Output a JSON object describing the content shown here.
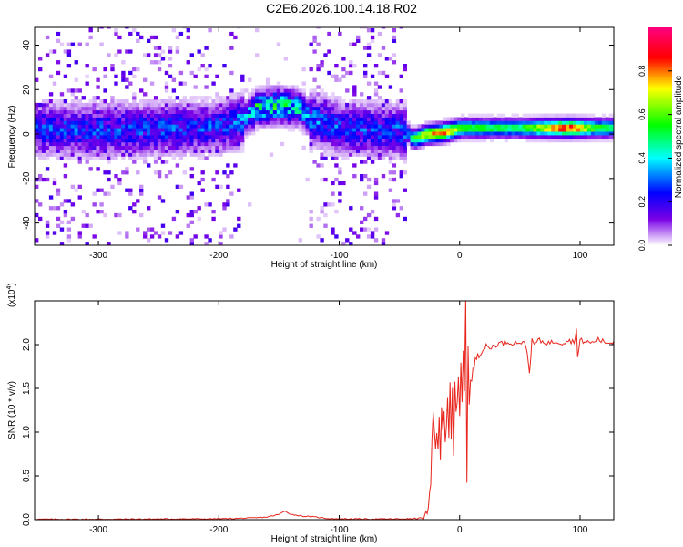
{
  "title": "C2E6.2026.100.14.18.R02",
  "chart_data": [
    {
      "type": "heatmap",
      "xlabel": "Height of straight line (km)",
      "ylabel": "Frequency (Hz)",
      "xlim": [
        -353,
        128
      ],
      "ylim": [
        -50,
        48
      ],
      "x_ticks": [
        -300,
        -200,
        -100,
        0,
        100
      ],
      "x_tick_labels": [
        "-300",
        "-200",
        "-100",
        "0",
        "100"
      ],
      "y_ticks": [
        -40,
        -20,
        0,
        20,
        40
      ],
      "y_tick_labels": [
        "-40",
        "-20",
        "0",
        "20",
        "40"
      ],
      "colorbar": {
        "label": "Normalized spectral amplitude",
        "range": [
          0.0,
          1.0
        ],
        "ticks": [
          0.0,
          0.2,
          0.4,
          0.6,
          0.8
        ],
        "tick_labels": [
          "0.0",
          "0.2",
          "0.4",
          "0.6",
          "0.8"
        ],
        "colormap": [
          "#ffffff",
          "#7a00e6",
          "#0000ff",
          "#00ffff",
          "#00ff00",
          "#ffff00",
          "#ff0000",
          "#ff0080"
        ]
      },
      "ridge": [
        {
          "x": -350,
          "f": 1.5,
          "amp": 0.25
        },
        {
          "x": -300,
          "f": 1.0,
          "amp": 0.25
        },
        {
          "x": -250,
          "f": 1.5,
          "amp": 0.25
        },
        {
          "x": -200,
          "f": 2.5,
          "amp": 0.25
        },
        {
          "x": -180,
          "f": 6.0,
          "amp": 0.3
        },
        {
          "x": -170,
          "f": 11.0,
          "amp": 0.45
        },
        {
          "x": -150,
          "f": 12.0,
          "amp": 0.5
        },
        {
          "x": -135,
          "f": 11.0,
          "amp": 0.4
        },
        {
          "x": -125,
          "f": 6.0,
          "amp": 0.3
        },
        {
          "x": -100,
          "f": 2.0,
          "amp": 0.25
        },
        {
          "x": -60,
          "f": 1.0,
          "amp": 0.25
        },
        {
          "x": -45,
          "f": 0.0,
          "amp": 0.3
        },
        {
          "x": -40,
          "f": -3.0,
          "amp": 0.55
        },
        {
          "x": -30,
          "f": -1.0,
          "amp": 0.75
        },
        {
          "x": -15,
          "f": 0.0,
          "amp": 0.85
        },
        {
          "x": 0,
          "f": 2.0,
          "amp": 0.6
        },
        {
          "x": 25,
          "f": 2.0,
          "amp": 0.55
        },
        {
          "x": 50,
          "f": 2.0,
          "amp": 0.55
        },
        {
          "x": 75,
          "f": 2.0,
          "amp": 0.8
        },
        {
          "x": 90,
          "f": 2.0,
          "amp": 0.95
        },
        {
          "x": 110,
          "f": 2.0,
          "amp": 0.6
        },
        {
          "x": 128,
          "f": 2.0,
          "amp": 0.55
        }
      ]
    },
    {
      "type": "line",
      "xlabel": "Height of straight line (km)",
      "ylabel": "SNR (10 * v/v)",
      "multiplier_label": "(x10",
      "multiplier_exp": "4",
      "multiplier_close": ")",
      "xlim": [
        -353,
        128
      ],
      "ylim": [
        0.0,
        2.5
      ],
      "x_ticks": [
        -300,
        -200,
        -100,
        0,
        100
      ],
      "x_tick_labels": [
        "-300",
        "-200",
        "-100",
        "0",
        "100"
      ],
      "y_ticks": [
        0.0,
        0.5,
        1.0,
        1.5,
        2.0
      ],
      "y_tick_labels": [
        "0.0",
        "0.5",
        "1.0",
        "1.5",
        "2.0"
      ],
      "color": "#e8261e",
      "series": [
        {
          "x": [
            -353,
            -300,
            -250,
            -200,
            -170,
            -160,
            -150,
            -145,
            -140,
            -130,
            -120,
            -110,
            -100,
            -80,
            -60,
            -40,
            -30,
            -28,
            -26,
            -24,
            -23,
            -22,
            -21,
            -20,
            -19,
            -18,
            -17,
            -16,
            -15,
            -14,
            -13,
            -12,
            -11,
            -10,
            -9,
            -8,
            -7,
            -6,
            -5,
            -4,
            -3,
            -2,
            -1,
            0,
            1,
            2,
            3,
            4,
            5,
            6,
            7,
            8,
            9,
            10,
            11,
            12,
            13,
            14,
            15,
            16,
            18,
            20,
            22,
            25,
            30,
            35,
            40,
            45,
            50,
            55,
            58,
            60,
            62,
            65,
            70,
            75,
            80,
            85,
            90,
            95,
            97,
            98,
            100,
            105,
            110,
            115,
            120,
            125,
            128
          ],
          "y": [
            0.005,
            0.005,
            0.008,
            0.01,
            0.02,
            0.03,
            0.06,
            0.1,
            0.06,
            0.04,
            0.03,
            0.015,
            0.01,
            0.008,
            0.008,
            0.01,
            0.02,
            0.05,
            0.1,
            0.4,
            0.9,
            1.2,
            1.05,
            0.85,
            1.0,
            0.75,
            1.15,
            0.7,
            1.25,
            1.05,
            1.3,
            0.9,
            1.1,
            1.4,
            0.95,
            1.6,
            0.9,
            1.45,
            0.7,
            1.55,
            1.2,
            1.35,
            1.6,
            1.15,
            1.8,
            1.4,
            1.9,
            1.5,
            2.55,
            0.45,
            2.0,
            1.3,
            1.6,
            1.55,
            1.7,
            1.75,
            1.8,
            1.85,
            1.9,
            1.88,
            1.92,
            1.95,
            1.98,
            1.96,
            2.0,
            2.02,
            2.03,
            2.02,
            2.03,
            2.0,
            1.7,
            2.04,
            2.0,
            2.05,
            2.03,
            2.02,
            2.04,
            2.02,
            2.05,
            2.03,
            2.18,
            1.85,
            2.05,
            2.03,
            2.02,
            2.06,
            2.03,
            2.02,
            2.04
          ]
        }
      ]
    }
  ]
}
